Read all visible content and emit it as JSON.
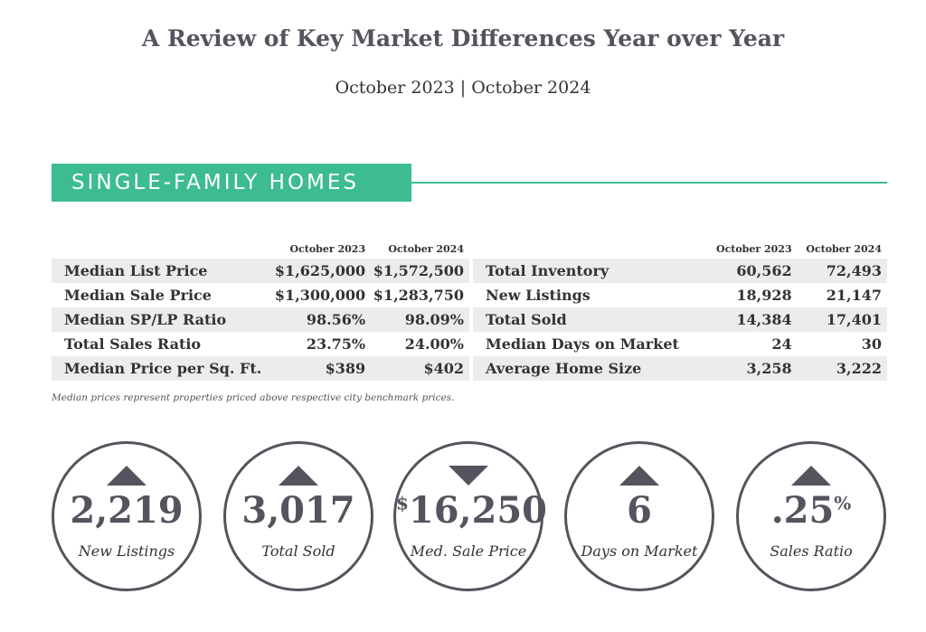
{
  "title": "A Review of Key Market Differences Year over Year",
  "subtitle": "October 2023 | October 2024",
  "section": "SINGLE-FAMILY HOMES",
  "accent_color": "#3dbb93",
  "columns": [
    "October 2023",
    "October 2024"
  ],
  "left_table": [
    {
      "label": "Median List Price",
      "v2023": "$1,625,000",
      "v2024": "$1,572,500"
    },
    {
      "label": "Median Sale Price",
      "v2023": "$1,300,000",
      "v2024": "$1,283,750"
    },
    {
      "label": "Median SP/LP Ratio",
      "v2023": "98.56%",
      "v2024": "98.09%"
    },
    {
      "label": "Total Sales Ratio",
      "v2023": "23.75%",
      "v2024": "24.00%"
    },
    {
      "label": "Median Price per Sq. Ft.",
      "v2023": "$389",
      "v2024": "$402"
    }
  ],
  "right_table": [
    {
      "label": "Total Inventory",
      "v2023": "60,562",
      "v2024": "72,493"
    },
    {
      "label": "New Listings",
      "v2023": "18,928",
      "v2024": "21,147"
    },
    {
      "label": "Total Sold",
      "v2023": "14,384",
      "v2024": "17,401"
    },
    {
      "label": "Median Days on Market",
      "v2023": "24",
      "v2024": "30"
    },
    {
      "label": "Average Home Size",
      "v2023": "3,258",
      "v2024": "3,222"
    }
  ],
  "note": "Median prices represent properties priced above respective city benchmark prices.",
  "stats": [
    {
      "prefix": "",
      "value": "2,219",
      "suffix": "",
      "label": "New Listings",
      "direction": "up"
    },
    {
      "prefix": "",
      "value": "3,017",
      "suffix": "",
      "label": "Total Sold",
      "direction": "up"
    },
    {
      "prefix": "$",
      "value": "16,250",
      "suffix": "",
      "label": "Med. Sale Price",
      "direction": "down"
    },
    {
      "prefix": "",
      "value": "6",
      "suffix": "",
      "label": "Days on Market",
      "direction": "up"
    },
    {
      "prefix": "",
      "value": ".25",
      "suffix": "%",
      "label": "Sales Ratio",
      "direction": "up"
    }
  ]
}
